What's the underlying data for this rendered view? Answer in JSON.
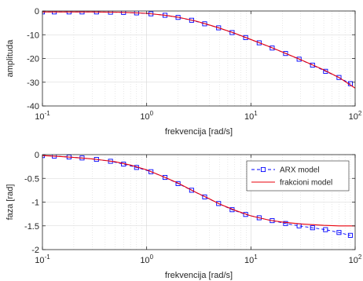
{
  "chart_data": [
    {
      "type": "line",
      "xscale": "log",
      "xlim": [
        0.1,
        100
      ],
      "ylim": [
        -40,
        0
      ],
      "xlabel": "frekvencija [rad/s]",
      "ylabel": "amplituda",
      "grid": true,
      "xtick_labels": [
        {
          "base": "10",
          "exp": "-1"
        },
        {
          "base": "10",
          "exp": "0"
        },
        {
          "base": "10",
          "exp": "1"
        },
        {
          "base": "10",
          "exp": "2"
        }
      ],
      "ytick_labels": [
        "0",
        "-10",
        "-20",
        "-30",
        "-40"
      ],
      "series": [
        {
          "name": "ARX model",
          "color": "#0000ff",
          "style": "dashed-square-markers",
          "x": [
            0.1,
            0.13,
            0.18,
            0.24,
            0.33,
            0.45,
            0.6,
            0.8,
            1.1,
            1.5,
            2.0,
            2.7,
            3.6,
            4.9,
            6.6,
            8.9,
            12,
            16,
            21.5,
            29,
            39,
            52,
            70,
            90
          ],
          "values": [
            -0.4,
            -0.4,
            -0.4,
            -0.4,
            -0.4,
            -0.5,
            -0.6,
            -0.8,
            -1.2,
            -1.8,
            -2.7,
            -3.9,
            -5.4,
            -7.1,
            -9.1,
            -11.2,
            -13.4,
            -15.6,
            -17.9,
            -20.3,
            -22.8,
            -25.4,
            -28.0,
            -30.6
          ]
        },
        {
          "name": "frakcioni model",
          "color": "#e8000b",
          "style": "solid",
          "x": [
            0.1,
            0.15,
            0.2,
            0.3,
            0.5,
            0.7,
            1.0,
            1.5,
            2.0,
            3.0,
            4.0,
            5.0,
            7.0,
            10,
            15,
            20,
            30,
            50,
            70,
            100
          ],
          "values": [
            -0.4,
            -0.4,
            -0.4,
            -0.4,
            -0.5,
            -0.7,
            -1.0,
            -1.8,
            -2.6,
            -4.3,
            -5.9,
            -7.2,
            -9.4,
            -12.0,
            -15.0,
            -17.3,
            -20.5,
            -24.8,
            -28.0,
            -32.5
          ]
        }
      ]
    },
    {
      "type": "line",
      "xscale": "log",
      "xlim": [
        0.1,
        100
      ],
      "ylim": [
        -2,
        0
      ],
      "xlabel": "frekvencija [rad/s]",
      "ylabel": "faza [rad]",
      "grid": true,
      "legend": "top-right",
      "xtick_labels": [
        {
          "base": "10",
          "exp": "-1"
        },
        {
          "base": "10",
          "exp": "0"
        },
        {
          "base": "10",
          "exp": "1"
        },
        {
          "base": "10",
          "exp": "2"
        }
      ],
      "ytick_labels": [
        "0",
        "-0.5",
        "-1",
        "-1.5",
        "-2"
      ],
      "series": [
        {
          "name": "ARX model",
          "color": "#0000ff",
          "style": "dashed-square-markers",
          "x": [
            0.1,
            0.13,
            0.18,
            0.24,
            0.33,
            0.45,
            0.6,
            0.8,
            1.1,
            1.5,
            2.0,
            2.7,
            3.6,
            4.9,
            6.6,
            8.9,
            12,
            16,
            21.5,
            29,
            39,
            52,
            70,
            90
          ],
          "values": [
            -0.02,
            -0.03,
            -0.05,
            -0.07,
            -0.1,
            -0.14,
            -0.2,
            -0.27,
            -0.36,
            -0.48,
            -0.61,
            -0.75,
            -0.89,
            -1.03,
            -1.16,
            -1.26,
            -1.33,
            -1.39,
            -1.45,
            -1.5,
            -1.54,
            -1.58,
            -1.64,
            -1.7
          ]
        },
        {
          "name": "frakcioni model",
          "color": "#e8000b",
          "style": "solid",
          "x": [
            0.1,
            0.15,
            0.2,
            0.3,
            0.5,
            0.7,
            1.0,
            1.5,
            2.0,
            3.0,
            4.0,
            5.0,
            7.0,
            10,
            15,
            20,
            30,
            50,
            70,
            100
          ],
          "values": [
            -0.02,
            -0.04,
            -0.06,
            -0.09,
            -0.15,
            -0.22,
            -0.32,
            -0.48,
            -0.6,
            -0.8,
            -0.93,
            -1.04,
            -1.17,
            -1.29,
            -1.38,
            -1.42,
            -1.46,
            -1.49,
            -1.5,
            -1.5
          ]
        }
      ]
    }
  ]
}
